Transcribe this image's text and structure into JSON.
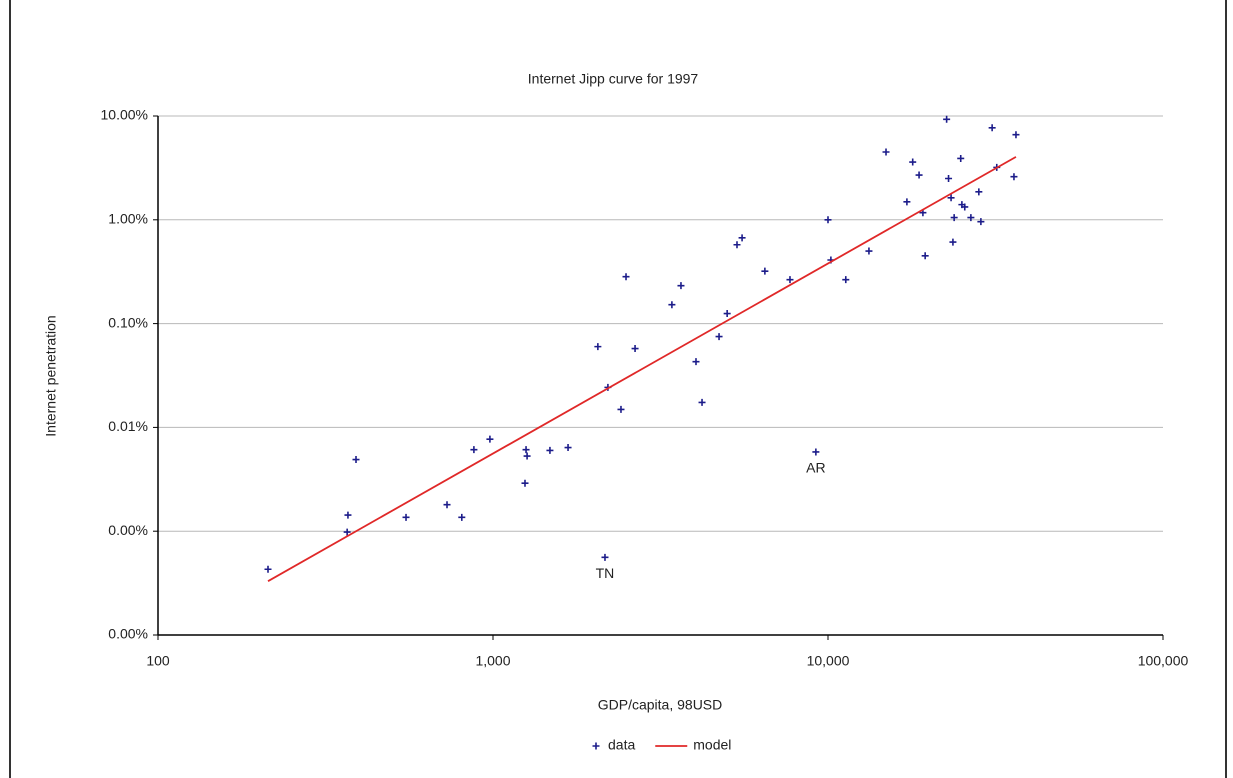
{
  "chart_data": {
    "type": "scatter",
    "title": "Internet Jipp curve for 1997",
    "x_label": "GDP/capita, 98USD",
    "y_label": "Internet penetration",
    "xlog": true,
    "ylog": true,
    "grid": true,
    "legend": "bottom",
    "xlim": [
      100,
      100000
    ],
    "xticks": [
      100,
      {
        "value": 1000,
        "label": "1,000"
      },
      {
        "value": 10000,
        "label": "10,000"
      },
      {
        "value": 100000,
        "label": "100,000"
      }
    ],
    "ylim": [
      0.0001,
      10
    ],
    "yticks": [
      {
        "value": 0.0001,
        "label": "0.00%"
      },
      {
        "value": 0.001,
        "label": "0.00%"
      },
      {
        "value": 0.01,
        "label": "0.01%"
      },
      {
        "value": 0.1,
        "label": "0.10%"
      },
      {
        "value": 1,
        "label": "1.00%"
      },
      {
        "value": 10,
        "label": "10.00%"
      }
    ],
    "series": [
      {
        "name": "data",
        "color": "#1c1c8a",
        "marker": "plus",
        "x": [
          213,
          369,
          367,
          390,
          550,
          729,
          807,
          877,
          979,
          1255,
          1264,
          1246,
          1479,
          1675,
          2056,
          2203,
          2159,
          2410,
          2495,
          2655,
          3420,
          3640,
          4036,
          4207,
          4729,
          5000,
          5350,
          5540,
          6480,
          7700,
          10000,
          10200,
          9200,
          11300,
          13250,
          14900,
          17200,
          17900,
          18700,
          19200,
          19500,
          22600,
          22900,
          23300,
          23600,
          23800,
          24900,
          25100,
          25600,
          26700,
          28200,
          28600,
          30900,
          31900,
          35900,
          36400
        ],
        "values": [
          0.00043,
          0.00143,
          0.00098,
          0.0049,
          0.00136,
          0.0018,
          0.00136,
          0.0061,
          0.0077,
          0.0061,
          0.0053,
          0.0029,
          0.006,
          0.0064,
          0.06,
          0.0243,
          0.00056,
          0.0149,
          0.283,
          0.0575,
          0.152,
          0.232,
          0.043,
          0.0174,
          0.075,
          0.125,
          0.575,
          0.67,
          0.32,
          0.265,
          1.0,
          0.41,
          0.0058,
          0.265,
          0.5,
          4.5,
          1.49,
          3.6,
          2.7,
          1.17,
          0.45,
          9.3,
          2.5,
          1.63,
          0.61,
          1.05,
          3.9,
          1.4,
          1.33,
          1.05,
          1.86,
          0.96,
          7.7,
          3.2,
          2.6,
          6.6
        ]
      },
      {
        "name": "model",
        "color": "#e02828",
        "marker": "line",
        "x": [
          213,
          36400
        ],
        "values": [
          0.00033,
          4.04
        ]
      }
    ],
    "annotations": [
      {
        "text": "TN",
        "x": 2159,
        "y": 0.00056
      },
      {
        "text": "AR",
        "x": 9200,
        "y": 0.0058
      }
    ]
  }
}
